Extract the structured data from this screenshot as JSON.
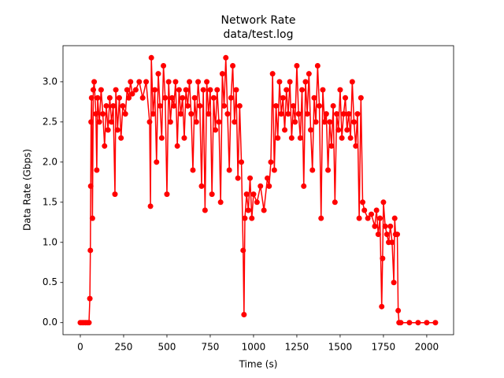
{
  "chart_data": {
    "type": "line",
    "title": "Network Rate",
    "subtitle": "data/test.log",
    "x_label": "Time (s)",
    "y_label": "Data Rate (Gbps)",
    "xlim": [
      -100,
      2155
    ],
    "ylim": [
      -0.15,
      3.45
    ],
    "xticks": [
      0,
      250,
      500,
      750,
      1000,
      1250,
      1500,
      1750,
      2000
    ],
    "yticks": [
      {
        "value": 0,
        "label": "0.0"
      },
      0.5,
      {
        "value": 1,
        "label": "1.0"
      },
      1.5,
      {
        "value": 2,
        "label": "2.0"
      },
      2.5,
      {
        "value": 3,
        "label": "3.0"
      }
    ],
    "x": [
      0,
      10,
      20,
      30,
      40,
      50,
      55,
      58,
      60,
      62,
      65,
      70,
      75,
      80,
      90,
      95,
      100,
      110,
      120,
      130,
      140,
      150,
      160,
      170,
      180,
      190,
      200,
      205,
      215,
      225,
      235,
      245,
      260,
      270,
      280,
      290,
      300,
      320,
      340,
      360,
      380,
      400,
      405,
      410,
      420,
      430,
      440,
      450,
      460,
      470,
      480,
      490,
      500,
      510,
      520,
      530,
      540,
      550,
      560,
      570,
      580,
      590,
      600,
      610,
      620,
      630,
      640,
      650,
      660,
      670,
      680,
      690,
      700,
      710,
      720,
      730,
      740,
      750,
      760,
      770,
      780,
      790,
      800,
      810,
      820,
      830,
      840,
      850,
      860,
      870,
      880,
      890,
      900,
      910,
      920,
      930,
      940,
      945,
      950,
      960,
      970,
      980,
      990,
      1000,
      1020,
      1040,
      1060,
      1080,
      1090,
      1100,
      1110,
      1120,
      1130,
      1140,
      1150,
      1160,
      1170,
      1180,
      1190,
      1200,
      1210,
      1220,
      1230,
      1240,
      1250,
      1260,
      1270,
      1280,
      1290,
      1300,
      1310,
      1320,
      1330,
      1340,
      1350,
      1360,
      1370,
      1380,
      1390,
      1400,
      1410,
      1420,
      1430,
      1440,
      1450,
      1460,
      1470,
      1480,
      1490,
      1500,
      1510,
      1520,
      1530,
      1540,
      1550,
      1560,
      1570,
      1580,
      1590,
      1600,
      1610,
      1620,
      1630,
      1640,
      1660,
      1680,
      1700,
      1710,
      1720,
      1730,
      1740,
      1745,
      1750,
      1760,
      1770,
      1780,
      1790,
      1800,
      1810,
      1815,
      1820,
      1830,
      1835,
      1840,
      1850,
      1900,
      1950,
      2000,
      2050
    ],
    "series": [
      {
        "color": "#ff0000",
        "values": [
          0,
          0,
          0,
          0,
          0,
          0,
          0.3,
          0.9,
          1.7,
          2.5,
          2.8,
          1.3,
          2.9,
          3.0,
          2.6,
          1.9,
          2.8,
          2.5,
          2.9,
          2.6,
          2.2,
          2.7,
          2.4,
          2.8,
          2.5,
          2.7,
          1.6,
          2.9,
          2.4,
          2.8,
          2.3,
          2.7,
          2.6,
          2.9,
          2.8,
          3.0,
          2.85,
          2.9,
          3.0,
          2.8,
          3.0,
          2.5,
          1.45,
          3.3,
          2.6,
          2.9,
          2.0,
          3.1,
          2.7,
          2.3,
          3.2,
          2.8,
          1.6,
          3.0,
          2.5,
          2.8,
          2.7,
          3.0,
          2.2,
          2.9,
          2.6,
          2.8,
          2.3,
          2.9,
          2.7,
          3.0,
          2.6,
          1.9,
          2.8,
          2.5,
          3.0,
          2.7,
          1.7,
          2.9,
          1.4,
          3.0,
          2.6,
          2.9,
          1.6,
          2.8,
          2.4,
          2.9,
          2.5,
          1.5,
          3.1,
          2.7,
          3.3,
          2.6,
          1.9,
          2.8,
          3.2,
          2.5,
          2.9,
          1.8,
          2.7,
          2.0,
          0.9,
          0.1,
          1.3,
          1.6,
          1.4,
          1.8,
          1.3,
          1.6,
          1.5,
          1.7,
          1.4,
          1.8,
          1.7,
          2.0,
          3.1,
          1.9,
          2.7,
          2.3,
          3.0,
          2.6,
          2.8,
          2.4,
          2.9,
          2.6,
          3.0,
          2.3,
          2.7,
          2.5,
          3.2,
          2.6,
          2.3,
          2.9,
          1.7,
          3.0,
          2.6,
          3.1,
          2.4,
          1.9,
          2.8,
          2.5,
          3.2,
          2.7,
          1.3,
          2.9,
          2.5,
          2.6,
          1.9,
          2.5,
          2.2,
          2.7,
          1.5,
          2.6,
          2.4,
          2.9,
          2.3,
          2.6,
          2.8,
          2.4,
          2.6,
          2.3,
          3.0,
          2.5,
          2.2,
          2.6,
          1.3,
          2.8,
          1.5,
          1.4,
          1.3,
          1.35,
          1.2,
          1.4,
          1.1,
          1.3,
          0.2,
          0.8,
          1.5,
          1.2,
          1.1,
          1.0,
          1.2,
          1.0,
          0.5,
          1.3,
          1.1,
          1.1,
          0.15,
          0,
          0,
          0,
          0,
          0,
          0
        ]
      }
    ]
  }
}
